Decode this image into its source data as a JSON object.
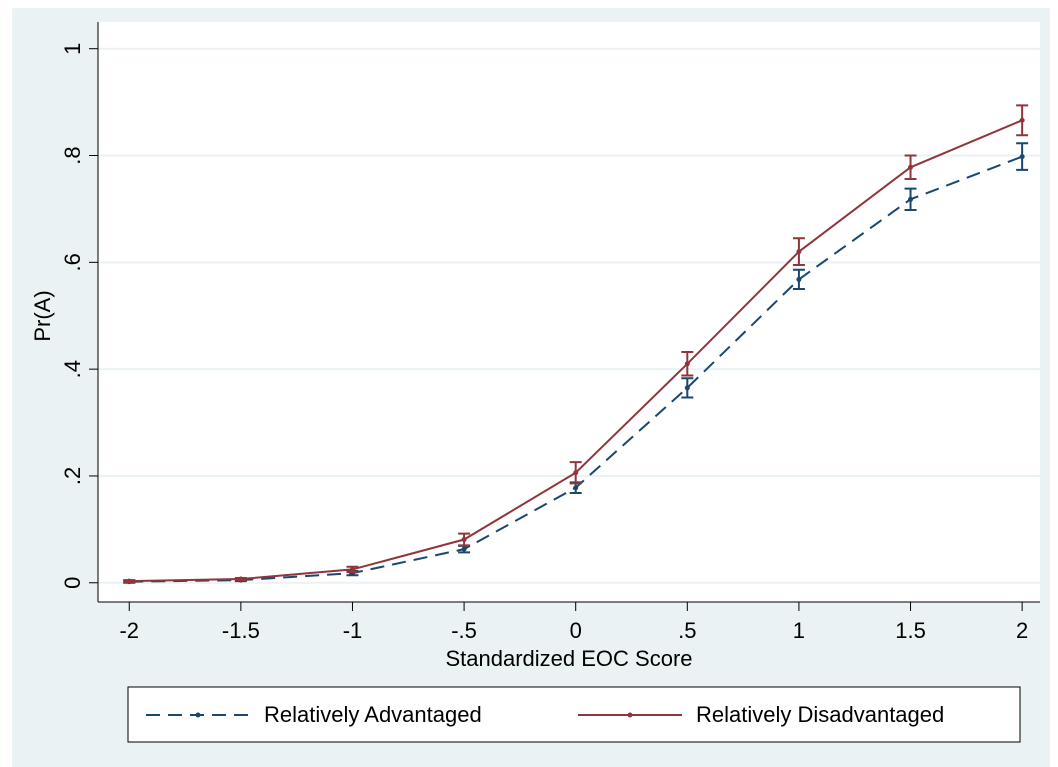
{
  "chart_data": {
    "type": "line",
    "x_label": "Standardized EOC Score",
    "y_label": "Pr(A)",
    "x": [
      -2,
      -1.5,
      -1,
      -0.5,
      0,
      0.5,
      1,
      1.5,
      2
    ],
    "series": [
      {
        "name": "Relatively Advantaged",
        "color": "#1a476f",
        "line_style": "dashed",
        "values": [
          0.002,
          0.005,
          0.018,
          0.063,
          0.178,
          0.365,
          0.568,
          0.718,
          0.798
        ],
        "error": [
          0.002,
          0.002,
          0.004,
          0.006,
          0.01,
          0.018,
          0.018,
          0.02,
          0.025
        ]
      },
      {
        "name": "Relatively Disadvantaged",
        "color": "#90353b",
        "line_style": "solid",
        "values": [
          0.003,
          0.007,
          0.025,
          0.081,
          0.206,
          0.41,
          0.62,
          0.778,
          0.866
        ],
        "error": [
          0.002,
          0.002,
          0.005,
          0.011,
          0.02,
          0.022,
          0.025,
          0.022,
          0.028
        ]
      }
    ],
    "xlim": [
      -2.14,
      2.08
    ],
    "ylim": [
      -0.036,
      1.05
    ],
    "xticks": [
      -2,
      -1.5,
      -1,
      {
        "value": -0.5,
        "label": "-.5"
      },
      0,
      {
        "value": 0.5,
        "label": ".5"
      },
      1,
      1.5,
      2
    ],
    "yticks": [
      0,
      {
        "value": 0.2,
        "label": ".2"
      },
      {
        "value": 0.4,
        "label": ".4"
      },
      {
        "value": 0.6,
        "label": ".6"
      },
      {
        "value": 0.8,
        "label": ".8"
      },
      1
    ],
    "grid": true,
    "legend_position": "bottom"
  }
}
